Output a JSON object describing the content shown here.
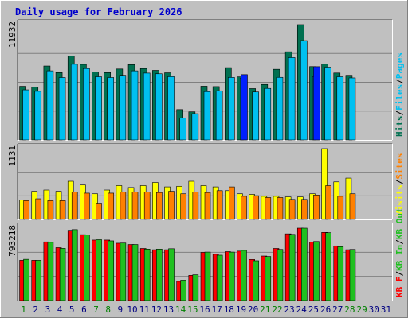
{
  "chart_data": {
    "title": "Daily usage for February 2026",
    "x_ticks": [
      "1",
      "2",
      "3",
      "4",
      "5",
      "6",
      "7",
      "8",
      "9",
      "10",
      "11",
      "12",
      "13",
      "14",
      "15",
      "16",
      "17",
      "18",
      "19",
      "20",
      "21",
      "22",
      "23",
      "24",
      "25",
      "26",
      "27",
      "28",
      "29",
      "30",
      "31"
    ],
    "weekend_days": [
      1,
      7,
      8,
      14,
      15,
      21,
      22,
      28,
      29
    ],
    "colors": {
      "title": "#0000cc",
      "background": "#c0c0c0",
      "frame": "#ffffff",
      "grid": "#808080",
      "hits": "#007050",
      "files": "#00c0f0",
      "pages": "#0020ff",
      "visits": "#ffff00",
      "sites": "#ff8000",
      "kbin": "#20c020",
      "kbout": "#008000",
      "kbf": "#ff0000",
      "weekday_tick": "#000080",
      "weekend_tick": "#008000"
    },
    "charts": [
      {
        "type": "bar",
        "axis_max_label": "11932",
        "ymax": 11932,
        "legend": [
          "Hits",
          "/",
          "Files",
          "/",
          "Pages"
        ],
        "legend_colors": [
          "#007050",
          "#000000",
          "#00c0f0",
          "#000000",
          "#00c0f0"
        ],
        "series": [
          {
            "name": "Hits",
            "color": "#007050",
            "values": [
              5550,
              5460,
              7650,
              6970,
              8680,
              7820,
              7050,
              6970,
              7340,
              7790,
              7390,
              7200,
              6950,
              3140,
              2900,
              5560,
              5520,
              7480,
              6530,
              5310,
              5740,
              7310,
              9120,
              11932,
              7590,
              7840,
              6930,
              6690,
              null,
              null,
              null
            ]
          },
          {
            "name": "Files",
            "color": "#00c0f0",
            "values": [
              5180,
              5030,
              7150,
              6460,
              7830,
              7390,
              6540,
              6460,
              6690,
              7150,
              6920,
              6850,
              6550,
              2280,
              2710,
              5000,
              5080,
              6470,
              6400,
              4960,
              5330,
              6480,
              8520,
              10280,
              6550,
              7530,
              6540,
              6420,
              null,
              null,
              null
            ]
          },
          {
            "name": "Pages",
            "color": "#0020ff",
            "values": [
              null,
              null,
              null,
              null,
              null,
              null,
              null,
              null,
              null,
              null,
              null,
              null,
              null,
              null,
              null,
              null,
              null,
              null,
              6760,
              null,
              null,
              null,
              null,
              null,
              7580,
              null,
              null,
              null,
              null,
              null,
              null
            ]
          }
        ]
      },
      {
        "type": "bar",
        "axis_max_label": "1131",
        "ymax": 1131,
        "legend": [
          "Visits",
          "/",
          "Sites"
        ],
        "legend_colors": [
          "#ffff00",
          "#000000",
          "#ff8000"
        ],
        "series": [
          {
            "name": "Visits",
            "color": "#ffff00",
            "values": [
              310,
              450,
              470,
              450,
              610,
              550,
              410,
              470,
              540,
              510,
              540,
              590,
              520,
              530,
              610,
              540,
              520,
              460,
              410,
              400,
              370,
              370,
              360,
              360,
              410,
              1131,
              600,
              660,
              null,
              null,
              null
            ]
          },
          {
            "name": "Sites",
            "color": "#ff8000",
            "values": [
              300,
              330,
              300,
              300,
              440,
              420,
              260,
              420,
              440,
              440,
              440,
              430,
              450,
              410,
              440,
              430,
              460,
              520,
              370,
              380,
              350,
              350,
              320,
              320,
              390,
              540,
              370,
              410,
              null,
              null,
              null
            ]
          }
        ]
      },
      {
        "type": "bar",
        "axis_max_label": "793218",
        "ymax": 793218,
        "legend": [
          "KB F",
          "/",
          "KB In",
          "/",
          "KB Out"
        ],
        "legend_colors": [
          "#ff0000",
          "#000000",
          "#20c020",
          "#000000",
          "#20c020"
        ],
        "series": [
          {
            "name": "KB F",
            "color": "#ff0000",
            "values": [
              441000,
              441000,
              643000,
              580000,
              770000,
              722000,
              663000,
              663000,
              628000,
              614000,
              571000,
              557000,
              557000,
              210000,
              276000,
              528000,
              507000,
              536000,
              542000,
              450000,
              488000,
              571000,
              731000,
              793218,
              640000,
              747000,
              599000,
              557000,
              null,
              null,
              null
            ]
          },
          {
            "name": "KB In",
            "color": "#20c020",
            "values": [
              452000,
              441000,
              638000,
              572000,
              777000,
              718000,
              667000,
              654000,
              630000,
              614000,
              564000,
              564000,
              568000,
              223000,
              282000,
              531000,
              497000,
              531000,
              550000,
              436000,
              483000,
              560000,
              725000,
              793218,
              647000,
              744000,
              590000,
              560000,
              null,
              null,
              null
            ]
          }
        ]
      }
    ]
  }
}
